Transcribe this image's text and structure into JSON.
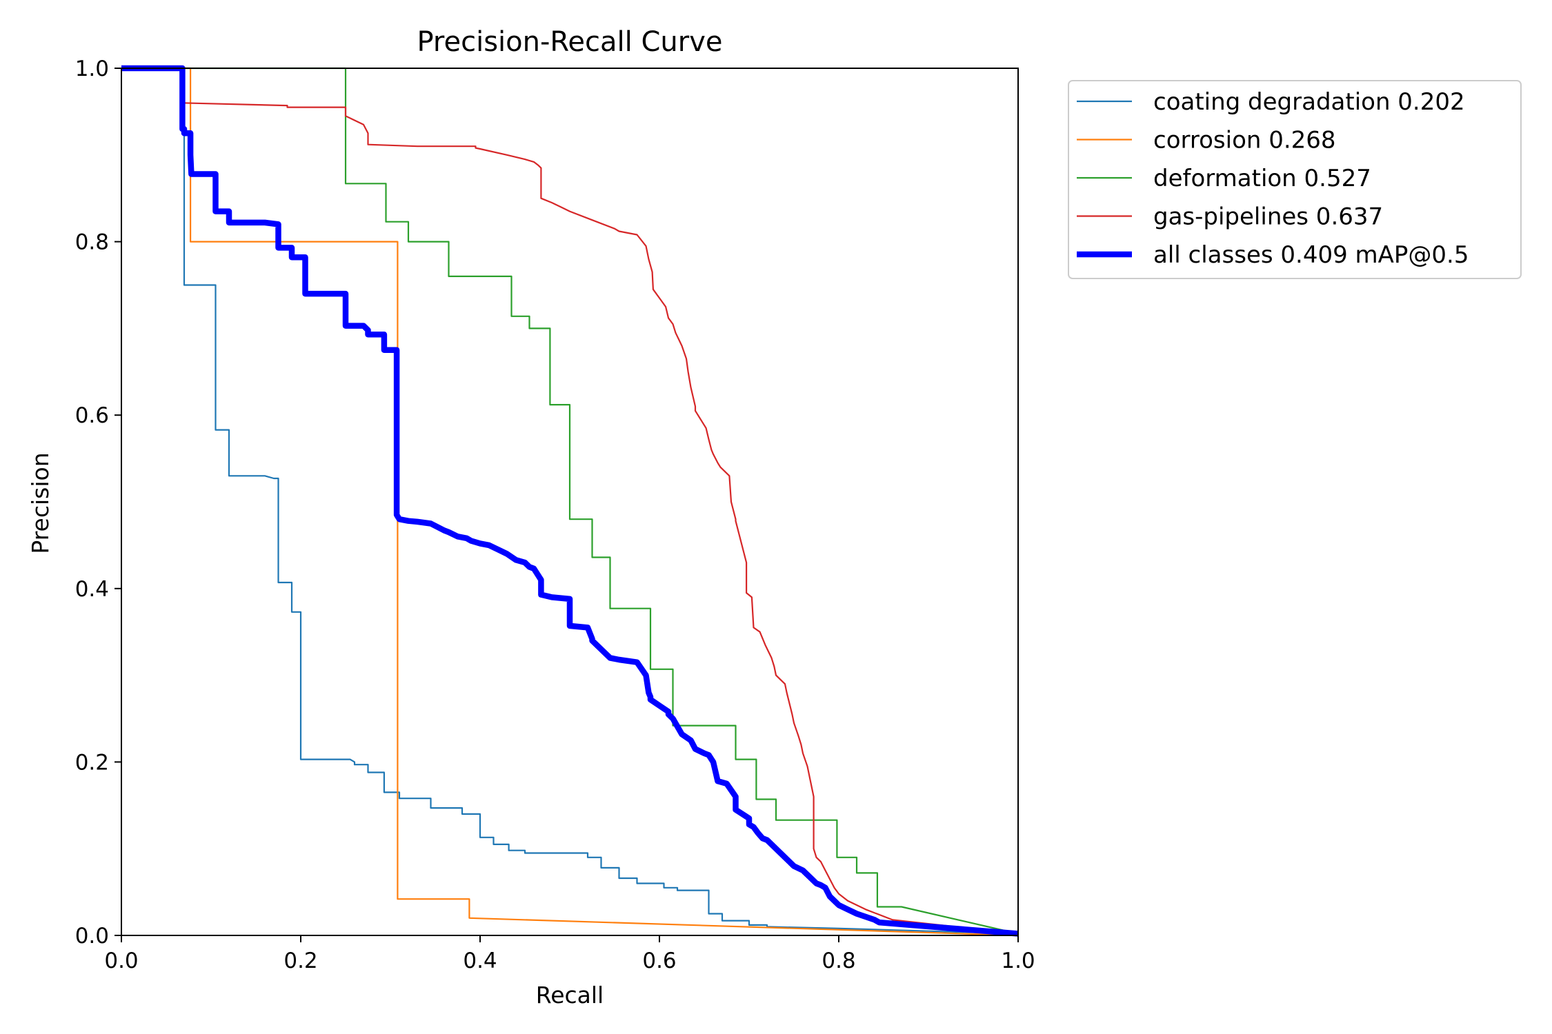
{
  "chart_data": {
    "type": "line",
    "title": "Precision-Recall Curve",
    "xlabel": "Recall",
    "ylabel": "Precision",
    "xlim": [
      0,
      1
    ],
    "ylim": [
      0,
      1
    ],
    "xticks": [
      "0.0",
      "0.2",
      "0.4",
      "0.6",
      "0.8",
      "1.0"
    ],
    "yticks": [
      "0.0",
      "0.2",
      "0.4",
      "0.6",
      "0.8",
      "1.0"
    ],
    "grid": false,
    "legend_position": "outside-top-right",
    "series": [
      {
        "name": "coating degradation 0.202",
        "color": "#1f77b4",
        "width": "thin",
        "x": [
          0.0,
          0.068,
          0.07,
          0.07,
          0.105,
          0.105,
          0.12,
          0.12,
          0.16,
          0.17,
          0.175,
          0.175,
          0.19,
          0.19,
          0.2,
          0.2,
          0.21,
          0.21,
          0.255,
          0.26,
          0.26,
          0.275,
          0.275,
          0.293,
          0.293,
          0.31,
          0.31,
          0.345,
          0.345,
          0.38,
          0.38,
          0.4,
          0.4,
          0.415,
          0.415,
          0.432,
          0.432,
          0.45,
          0.45,
          0.52,
          0.52,
          0.535,
          0.535,
          0.555,
          0.555,
          0.575,
          0.575,
          0.605,
          0.605,
          0.62,
          0.62,
          0.655,
          0.655,
          0.67,
          0.67,
          0.7,
          0.7,
          0.72,
          0.72,
          0.8,
          0.9,
          1.0
        ],
        "y": [
          1.0,
          1.0,
          1.0,
          0.75,
          0.75,
          0.583,
          0.583,
          0.53,
          0.53,
          0.527,
          0.527,
          0.407,
          0.407,
          0.373,
          0.373,
          0.203,
          0.203,
          0.203,
          0.203,
          0.2,
          0.197,
          0.197,
          0.188,
          0.188,
          0.165,
          0.165,
          0.158,
          0.158,
          0.147,
          0.147,
          0.14,
          0.14,
          0.113,
          0.113,
          0.105,
          0.105,
          0.098,
          0.098,
          0.095,
          0.095,
          0.09,
          0.09,
          0.078,
          0.078,
          0.066,
          0.066,
          0.06,
          0.06,
          0.055,
          0.055,
          0.052,
          0.052,
          0.025,
          0.025,
          0.017,
          0.017,
          0.012,
          0.012,
          0.01,
          0.008,
          0.005,
          0.002
        ]
      },
      {
        "name": "corrosion 0.268",
        "color": "#ff7f0e",
        "width": "thin",
        "x": [
          0.0,
          0.077,
          0.077,
          0.308,
          0.308,
          0.388,
          0.388,
          1.0
        ],
        "y": [
          1.0,
          1.0,
          0.8,
          0.8,
          0.042,
          0.042,
          0.02,
          0.0
        ]
      },
      {
        "name": "deformation 0.527",
        "color": "#2ca02c",
        "width": "thin",
        "x": [
          0.0,
          0.25,
          0.25,
          0.295,
          0.295,
          0.32,
          0.32,
          0.365,
          0.365,
          0.435,
          0.435,
          0.455,
          0.455,
          0.478,
          0.478,
          0.5,
          0.5,
          0.525,
          0.525,
          0.545,
          0.545,
          0.59,
          0.59,
          0.615,
          0.615,
          0.685,
          0.685,
          0.708,
          0.708,
          0.73,
          0.73,
          0.798,
          0.798,
          0.82,
          0.82,
          0.843,
          0.843,
          0.87,
          1.0
        ],
        "y": [
          1.0,
          1.0,
          0.867,
          0.867,
          0.823,
          0.823,
          0.8,
          0.8,
          0.76,
          0.76,
          0.714,
          0.714,
          0.7,
          0.7,
          0.612,
          0.612,
          0.48,
          0.48,
          0.436,
          0.436,
          0.377,
          0.377,
          0.307,
          0.307,
          0.242,
          0.242,
          0.203,
          0.203,
          0.157,
          0.157,
          0.133,
          0.133,
          0.09,
          0.09,
          0.072,
          0.072,
          0.033,
          0.033,
          0.002
        ]
      },
      {
        "name": "gas-pipelines 0.637",
        "color": "#d62728",
        "width": "thin",
        "x": [
          0.0,
          0.068,
          0.068,
          0.185,
          0.185,
          0.25,
          0.25,
          0.27,
          0.275,
          0.275,
          0.33,
          0.33,
          0.395,
          0.395,
          0.4,
          0.43,
          0.45,
          0.46,
          0.465,
          0.468,
          0.468,
          0.48,
          0.49,
          0.5,
          0.525,
          0.525,
          0.55,
          0.555,
          0.575,
          0.585,
          0.588,
          0.592,
          0.593,
          0.6,
          0.607,
          0.61,
          0.615,
          0.618,
          0.625,
          0.63,
          0.632,
          0.635,
          0.64,
          0.64,
          0.652,
          0.655,
          0.658,
          0.66,
          0.665,
          0.668,
          0.678,
          0.68,
          0.685,
          0.685,
          0.697,
          0.697,
          0.703,
          0.705,
          0.712,
          0.718,
          0.725,
          0.728,
          0.73,
          0.735,
          0.74,
          0.742,
          0.748,
          0.75,
          0.755,
          0.758,
          0.76,
          0.765,
          0.772,
          0.772,
          0.775,
          0.78,
          0.785,
          0.79,
          0.795,
          0.8,
          0.81,
          0.83,
          0.86,
          1.0
        ],
        "y": [
          1.0,
          1.0,
          0.96,
          0.957,
          0.955,
          0.955,
          0.945,
          0.935,
          0.925,
          0.912,
          0.91,
          0.91,
          0.91,
          0.908,
          0.907,
          0.9,
          0.895,
          0.892,
          0.888,
          0.885,
          0.85,
          0.845,
          0.84,
          0.835,
          0.825,
          0.825,
          0.815,
          0.812,
          0.808,
          0.795,
          0.78,
          0.765,
          0.745,
          0.735,
          0.725,
          0.712,
          0.705,
          0.695,
          0.68,
          0.665,
          0.65,
          0.632,
          0.61,
          0.605,
          0.585,
          0.572,
          0.56,
          0.555,
          0.545,
          0.54,
          0.53,
          0.5,
          0.48,
          0.478,
          0.43,
          0.395,
          0.39,
          0.355,
          0.35,
          0.335,
          0.32,
          0.31,
          0.3,
          0.295,
          0.29,
          0.28,
          0.255,
          0.245,
          0.23,
          0.22,
          0.21,
          0.195,
          0.16,
          0.1,
          0.09,
          0.085,
          0.075,
          0.065,
          0.055,
          0.048,
          0.04,
          0.03,
          0.018,
          0.002
        ]
      },
      {
        "name": "all classes 0.409 mAP@0.5",
        "color": "#0000ff",
        "width": "thick",
        "x": [
          0.0,
          0.068,
          0.068,
          0.07,
          0.07,
          0.077,
          0.077,
          0.078,
          0.078,
          0.105,
          0.105,
          0.12,
          0.12,
          0.155,
          0.16,
          0.175,
          0.175,
          0.19,
          0.19,
          0.205,
          0.205,
          0.25,
          0.25,
          0.27,
          0.275,
          0.275,
          0.293,
          0.293,
          0.307,
          0.307,
          0.31,
          0.32,
          0.33,
          0.345,
          0.36,
          0.365,
          0.375,
          0.385,
          0.39,
          0.4,
          0.41,
          0.42,
          0.43,
          0.44,
          0.45,
          0.455,
          0.46,
          0.468,
          0.468,
          0.48,
          0.5,
          0.5,
          0.52,
          0.525,
          0.525,
          0.545,
          0.555,
          0.575,
          0.585,
          0.588,
          0.59,
          0.59,
          0.6,
          0.61,
          0.61,
          0.615,
          0.625,
          0.635,
          0.64,
          0.65,
          0.655,
          0.66,
          0.665,
          0.675,
          0.685,
          0.685,
          0.7,
          0.7,
          0.705,
          0.71,
          0.715,
          0.72,
          0.73,
          0.74,
          0.75,
          0.76,
          0.77,
          0.775,
          0.78,
          0.785,
          0.79,
          0.795,
          0.8,
          0.81,
          0.82,
          0.84,
          0.845,
          0.88,
          1.0
        ],
        "y": [
          1.0,
          1.0,
          0.93,
          0.93,
          0.925,
          0.925,
          0.9,
          0.878,
          0.878,
          0.878,
          0.835,
          0.835,
          0.822,
          0.822,
          0.822,
          0.82,
          0.793,
          0.793,
          0.782,
          0.782,
          0.74,
          0.74,
          0.703,
          0.703,
          0.698,
          0.693,
          0.693,
          0.675,
          0.675,
          0.485,
          0.48,
          0.478,
          0.477,
          0.475,
          0.467,
          0.465,
          0.46,
          0.458,
          0.455,
          0.452,
          0.45,
          0.445,
          0.44,
          0.433,
          0.43,
          0.425,
          0.423,
          0.41,
          0.393,
          0.39,
          0.388,
          0.357,
          0.355,
          0.342,
          0.34,
          0.32,
          0.318,
          0.315,
          0.3,
          0.28,
          0.275,
          0.272,
          0.265,
          0.258,
          0.255,
          0.25,
          0.232,
          0.225,
          0.215,
          0.21,
          0.208,
          0.2,
          0.178,
          0.175,
          0.16,
          0.145,
          0.135,
          0.128,
          0.125,
          0.118,
          0.112,
          0.11,
          0.1,
          0.09,
          0.08,
          0.075,
          0.065,
          0.06,
          0.058,
          0.055,
          0.045,
          0.04,
          0.035,
          0.03,
          0.025,
          0.018,
          0.015,
          0.012,
          0.002
        ]
      }
    ]
  }
}
